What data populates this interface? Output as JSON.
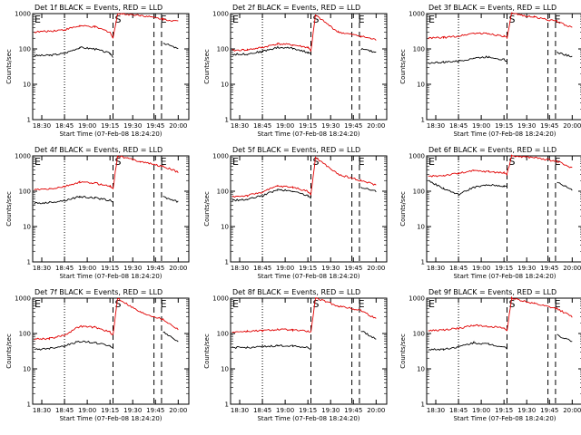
{
  "colors": {
    "events": "#000000",
    "lld": "#e00000",
    "background": "#ffffff",
    "axis": "#000000"
  },
  "chart_data": [
    {
      "type": "line",
      "title": "Det 1f BLACK = Events, RED = LLD",
      "xlabel": "Start Time (07-Feb-08 18:24:20)",
      "ylabel": "Counts/sec",
      "yscale": "log",
      "ylim": [
        1,
        1000
      ],
      "xticks": [
        "18:30",
        "18:45",
        "19:00",
        "19:15",
        "19:30",
        "19:45",
        "20:00"
      ],
      "yticks": [
        "1",
        "10",
        "100",
        "1000"
      ],
      "markers": [
        {
          "label": "E",
          "x": "18:24"
        },
        {
          "label": "S",
          "x": "19:17"
        },
        {
          "label": "E",
          "x": "19:47"
        }
      ],
      "series": [
        {
          "name": "BLACK = Events",
          "color": "#000000",
          "x": [
            "18:25",
            "18:35",
            "18:45",
            "18:55",
            "19:05",
            "19:15",
            "19:17",
            "19:48",
            "19:50",
            "20:00"
          ],
          "values": [
            65,
            66,
            75,
            110,
            100,
            75,
            60,
            null,
            150,
            100
          ]
        },
        {
          "name": "RED = LLD",
          "color": "#e00000",
          "x": [
            "18:25",
            "18:35",
            "18:45",
            "18:55",
            "19:05",
            "19:15",
            "19:17",
            "19:20",
            "19:35",
            "19:50",
            "20:00"
          ],
          "values": [
            300,
            320,
            350,
            450,
            420,
            300,
            200,
            1000,
            900,
            700,
            600
          ]
        }
      ]
    },
    {
      "type": "line",
      "title": "Det 2f BLACK = Events, RED = LLD",
      "xlabel": "Start Time (07-Feb-08 18:24:20)",
      "ylabel": "Counts/sec",
      "yscale": "log",
      "ylim": [
        1,
        1000
      ],
      "xticks": [
        "18:30",
        "18:45",
        "19:00",
        "19:15",
        "19:30",
        "19:45",
        "20:00"
      ],
      "yticks": [
        "1",
        "10",
        "100",
        "1000"
      ],
      "markers": [
        {
          "label": "E",
          "x": "18:24"
        },
        {
          "label": "S",
          "x": "19:17"
        },
        {
          "label": "E",
          "x": "19:47"
        }
      ],
      "series": [
        {
          "name": "BLACK = Events",
          "color": "#000000",
          "x": [
            "18:25",
            "18:35",
            "18:45",
            "18:55",
            "19:05",
            "19:15",
            "19:17",
            "19:48",
            "19:50",
            "20:00"
          ],
          "values": [
            70,
            72,
            85,
            110,
            105,
            80,
            70,
            null,
            100,
            80
          ]
        },
        {
          "name": "RED = LLD",
          "color": "#e00000",
          "x": [
            "18:25",
            "18:35",
            "18:45",
            "18:55",
            "19:05",
            "19:15",
            "19:17",
            "19:20",
            "19:35",
            "19:50",
            "20:00"
          ],
          "values": [
            90,
            95,
            110,
            140,
            130,
            110,
            90,
            900,
            300,
            230,
            180
          ]
        }
      ]
    },
    {
      "type": "line",
      "title": "Det 3f BLACK = Events, RED = LLD",
      "xlabel": "Start Time (07-Feb-08 18:24:20)",
      "ylabel": "Counts/sec",
      "yscale": "log",
      "ylim": [
        1,
        1000
      ],
      "xticks": [
        "18:30",
        "18:45",
        "19:00",
        "19:15",
        "19:30",
        "19:45",
        "20:00"
      ],
      "yticks": [
        "1",
        "10",
        "100",
        "1000"
      ],
      "markers": [
        {
          "label": "E",
          "x": "18:24"
        },
        {
          "label": "S",
          "x": "19:17"
        },
        {
          "label": "E",
          "x": "19:47"
        }
      ],
      "series": [
        {
          "name": "BLACK = Events",
          "color": "#000000",
          "x": [
            "18:25",
            "18:35",
            "18:45",
            "18:55",
            "19:05",
            "19:15",
            "19:17",
            "19:48",
            "19:50",
            "20:00"
          ],
          "values": [
            40,
            42,
            45,
            55,
            60,
            50,
            45,
            null,
            80,
            60
          ]
        },
        {
          "name": "RED = LLD",
          "color": "#e00000",
          "x": [
            "18:25",
            "18:35",
            "18:45",
            "18:55",
            "19:05",
            "19:15",
            "19:17",
            "19:20",
            "19:35",
            "19:50",
            "20:00"
          ],
          "values": [
            200,
            210,
            230,
            280,
            270,
            230,
            200,
            1000,
            800,
            600,
            400
          ]
        }
      ]
    },
    {
      "type": "line",
      "title": "Det 4f BLACK = Events, RED = LLD",
      "xlabel": "Start Time (07-Feb-08 18:24:20)",
      "ylabel": "Counts/sec",
      "yscale": "log",
      "ylim": [
        1,
        1000
      ],
      "xticks": [
        "18:30",
        "18:45",
        "19:00",
        "19:15",
        "19:30",
        "19:45",
        "20:00"
      ],
      "yticks": [
        "1",
        "10",
        "100",
        "1000"
      ],
      "markers": [
        {
          "label": "E",
          "x": "18:24"
        },
        {
          "label": "S",
          "x": "19:17"
        },
        {
          "label": "E",
          "x": "19:47"
        }
      ],
      "series": [
        {
          "name": "BLACK = Events",
          "color": "#000000",
          "x": [
            "18:25",
            "18:35",
            "18:45",
            "18:55",
            "19:05",
            "19:15",
            "19:17",
            "19:48",
            "19:50",
            "20:00"
          ],
          "values": [
            45,
            48,
            55,
            70,
            65,
            55,
            50,
            null,
            70,
            50
          ]
        },
        {
          "name": "RED = LLD",
          "color": "#e00000",
          "x": [
            "18:25",
            "18:35",
            "18:45",
            "18:55",
            "19:05",
            "19:15",
            "19:17",
            "19:20",
            "19:35",
            "19:50",
            "20:00"
          ],
          "values": [
            110,
            115,
            135,
            180,
            170,
            140,
            120,
            1000,
            700,
            500,
            350
          ]
        }
      ]
    },
    {
      "type": "line",
      "title": "Det 5f BLACK = Events, RED = LLD",
      "xlabel": "Start Time (07-Feb-08 18:24:20)",
      "ylabel": "Counts/sec",
      "yscale": "log",
      "ylim": [
        1,
        1000
      ],
      "xticks": [
        "18:30",
        "18:45",
        "19:00",
        "19:15",
        "19:30",
        "19:45",
        "20:00"
      ],
      "yticks": [
        "1",
        "10",
        "100",
        "1000"
      ],
      "markers": [
        {
          "label": "E",
          "x": "18:24"
        },
        {
          "label": "S",
          "x": "19:17"
        },
        {
          "label": "E",
          "x": "19:47"
        }
      ],
      "series": [
        {
          "name": "BLACK = Events",
          "color": "#000000",
          "x": [
            "18:25",
            "18:35",
            "18:45",
            "18:55",
            "19:05",
            "19:15",
            "19:17",
            "19:48",
            "19:50",
            "20:00"
          ],
          "values": [
            55,
            58,
            75,
            110,
            100,
            75,
            65,
            null,
            130,
            100
          ]
        },
        {
          "name": "RED = LLD",
          "color": "#e00000",
          "x": [
            "18:25",
            "18:35",
            "18:45",
            "18:55",
            "19:05",
            "19:15",
            "19:17",
            "19:20",
            "19:35",
            "19:50",
            "20:00"
          ],
          "values": [
            70,
            75,
            95,
            140,
            130,
            100,
            80,
            900,
            300,
            200,
            150
          ]
        }
      ]
    },
    {
      "type": "line",
      "title": "Det 6f BLACK = Events, RED = LLD",
      "xlabel": "Start Time (07-Feb-08 18:24:20)",
      "ylabel": "Counts/sec",
      "yscale": "log",
      "ylim": [
        1,
        1000
      ],
      "xticks": [
        "18:30",
        "18:45",
        "19:00",
        "19:15",
        "19:30",
        "19:45",
        "20:00"
      ],
      "yticks": [
        "1",
        "10",
        "100",
        "1000"
      ],
      "markers": [
        {
          "label": "E",
          "x": "18:24"
        },
        {
          "label": "S",
          "x": "19:17"
        },
        {
          "label": "E",
          "x": "19:47"
        }
      ],
      "series": [
        {
          "name": "BLACK = Events",
          "color": "#000000",
          "x": [
            "18:25",
            "18:35",
            "18:45",
            "18:55",
            "19:05",
            "19:15",
            "19:17",
            "19:48",
            "19:50",
            "20:00"
          ],
          "values": [
            200,
            120,
            80,
            130,
            150,
            140,
            130,
            null,
            180,
            110
          ]
        },
        {
          "name": "RED = LLD",
          "color": "#e00000",
          "x": [
            "18:25",
            "18:35",
            "18:45",
            "18:55",
            "19:05",
            "19:15",
            "19:17",
            "19:20",
            "19:35",
            "19:50",
            "20:00"
          ],
          "values": [
            260,
            280,
            320,
            380,
            360,
            330,
            300,
            1000,
            900,
            700,
            450
          ]
        }
      ]
    },
    {
      "type": "line",
      "title": "Det 7f BLACK = Events, RED = LLD",
      "xlabel": "Start Time (07-Feb-08 18:24:20)",
      "ylabel": "Counts/sec",
      "yscale": "log",
      "ylim": [
        1,
        1000
      ],
      "xticks": [
        "18:30",
        "18:45",
        "19:00",
        "19:15",
        "19:30",
        "19:45",
        "20:00"
      ],
      "yticks": [
        "1",
        "10",
        "100",
        "1000"
      ],
      "markers": [
        {
          "label": "E",
          "x": "18:24"
        },
        {
          "label": "S",
          "x": "19:17"
        },
        {
          "label": "E",
          "x": "19:47"
        }
      ],
      "series": [
        {
          "name": "BLACK = Events",
          "color": "#000000",
          "x": [
            "18:25",
            "18:35",
            "18:45",
            "18:55",
            "19:05",
            "19:15",
            "19:17",
            "19:48",
            "19:50",
            "20:00"
          ],
          "values": [
            35,
            38,
            45,
            60,
            55,
            45,
            40,
            null,
            110,
            60
          ]
        },
        {
          "name": "RED = LLD",
          "color": "#e00000",
          "x": [
            "18:25",
            "18:35",
            "18:45",
            "18:55",
            "19:05",
            "19:15",
            "19:17",
            "19:20",
            "19:35",
            "19:50",
            "20:00"
          ],
          "values": [
            70,
            72,
            90,
            160,
            150,
            110,
            90,
            1000,
            400,
            250,
            130
          ]
        }
      ]
    },
    {
      "type": "line",
      "title": "Det 8f BLACK = Events, RED = LLD",
      "xlabel": "Start Time (07-Feb-08 18:24:20)",
      "ylabel": "Counts/sec",
      "yscale": "log",
      "ylim": [
        1,
        1000
      ],
      "xticks": [
        "18:30",
        "18:45",
        "19:00",
        "19:15",
        "19:30",
        "19:45",
        "20:00"
      ],
      "yticks": [
        "1",
        "10",
        "100",
        "1000"
      ],
      "markers": [
        {
          "label": "E",
          "x": "18:24"
        },
        {
          "label": "S",
          "x": "19:17"
        },
        {
          "label": "E",
          "x": "19:47"
        }
      ],
      "series": [
        {
          "name": "BLACK = Events",
          "color": "#000000",
          "x": [
            "18:25",
            "18:35",
            "18:45",
            "18:55",
            "19:05",
            "19:15",
            "19:17",
            "19:48",
            "19:50",
            "20:00"
          ],
          "values": [
            40,
            40,
            42,
            45,
            45,
            40,
            35,
            null,
            120,
            70
          ]
        },
        {
          "name": "RED = LLD",
          "color": "#e00000",
          "x": [
            "18:25",
            "18:35",
            "18:45",
            "18:55",
            "19:05",
            "19:15",
            "19:17",
            "19:20",
            "19:35",
            "19:50",
            "20:00"
          ],
          "values": [
            110,
            115,
            120,
            130,
            125,
            115,
            110,
            1000,
            600,
            450,
            260
          ]
        }
      ]
    },
    {
      "type": "line",
      "title": "Det 9f BLACK = Events, RED = LLD",
      "xlabel": "Start Time (07-Feb-08 18:24:20)",
      "ylabel": "Counts/sec",
      "yscale": "log",
      "ylim": [
        1,
        1000
      ],
      "xticks": [
        "18:30",
        "18:45",
        "19:00",
        "19:15",
        "19:30",
        "19:45",
        "20:00"
      ],
      "yticks": [
        "1",
        "10",
        "100",
        "1000"
      ],
      "markers": [
        {
          "label": "E",
          "x": "18:24"
        },
        {
          "label": "S",
          "x": "19:17"
        },
        {
          "label": "E",
          "x": "19:47"
        }
      ],
      "series": [
        {
          "name": "BLACK = Events",
          "color": "#000000",
          "x": [
            "18:25",
            "18:35",
            "18:45",
            "18:55",
            "19:05",
            "19:15",
            "19:17",
            "19:48",
            "19:50",
            "20:00"
          ],
          "values": [
            35,
            36,
            42,
            55,
            50,
            42,
            38,
            null,
            90,
            60
          ]
        },
        {
          "name": "RED = LLD",
          "color": "#e00000",
          "x": [
            "18:25",
            "18:35",
            "18:45",
            "18:55",
            "19:05",
            "19:15",
            "19:17",
            "19:20",
            "19:35",
            "19:50",
            "20:00"
          ],
          "values": [
            120,
            125,
            140,
            170,
            160,
            140,
            120,
            1000,
            700,
            500,
            300
          ]
        }
      ]
    }
  ]
}
